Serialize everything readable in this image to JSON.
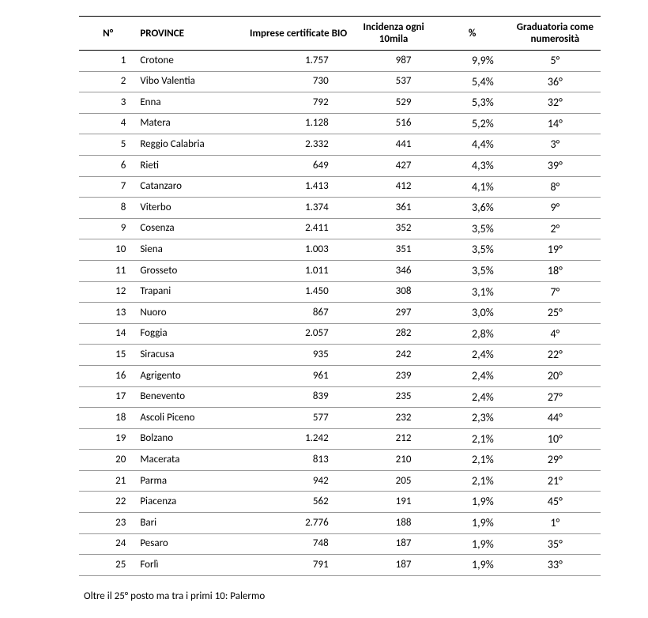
{
  "table": {
    "headers": {
      "num": "N°",
      "province": "PROVINCE",
      "imprese": "Imprese certificate BIO",
      "incidenza": "Incidenza ogni 10mila",
      "pct": "%",
      "graduatoria": "Graduatoria come numerosità"
    },
    "rows": [
      {
        "n": "1",
        "province": "Crotone",
        "imprese": "1.757",
        "incid": "987",
        "pct": "9,9%",
        "grad": "5°"
      },
      {
        "n": "2",
        "province": "Vibo Valentia",
        "imprese": "730",
        "incid": "537",
        "pct": "5,4%",
        "grad": "36°"
      },
      {
        "n": "3",
        "province": "Enna",
        "imprese": "792",
        "incid": "529",
        "pct": "5,3%",
        "grad": "32°"
      },
      {
        "n": "4",
        "province": "Matera",
        "imprese": "1.128",
        "incid": "516",
        "pct": "5,2%",
        "grad": "14°"
      },
      {
        "n": "5",
        "province": "Reggio Calabria",
        "imprese": "2.332",
        "incid": "441",
        "pct": "4,4%",
        "grad": "3°"
      },
      {
        "n": "6",
        "province": "Rieti",
        "imprese": "649",
        "incid": "427",
        "pct": "4,3%",
        "grad": "39°"
      },
      {
        "n": "7",
        "province": "Catanzaro",
        "imprese": "1.413",
        "incid": "412",
        "pct": "4,1%",
        "grad": "8°"
      },
      {
        "n": "8",
        "province": "Viterbo",
        "imprese": "1.374",
        "incid": "361",
        "pct": "3,6%",
        "grad": "9°"
      },
      {
        "n": "9",
        "province": "Cosenza",
        "imprese": "2.411",
        "incid": "352",
        "pct": "3,5%",
        "grad": "2°"
      },
      {
        "n": "10",
        "province": "Siena",
        "imprese": "1.003",
        "incid": "351",
        "pct": "3,5%",
        "grad": "19°"
      },
      {
        "n": "11",
        "province": "Grosseto",
        "imprese": "1.011",
        "incid": "346",
        "pct": "3,5%",
        "grad": "18°"
      },
      {
        "n": "12",
        "province": "Trapani",
        "imprese": "1.450",
        "incid": "308",
        "pct": "3,1%",
        "grad": "7°"
      },
      {
        "n": "13",
        "province": "Nuoro",
        "imprese": "867",
        "incid": "297",
        "pct": "3,0%",
        "grad": "25°"
      },
      {
        "n": "14",
        "province": "Foggia",
        "imprese": "2.057",
        "incid": "282",
        "pct": "2,8%",
        "grad": "4°"
      },
      {
        "n": "15",
        "province": "Siracusa",
        "imprese": "935",
        "incid": "242",
        "pct": "2,4%",
        "grad": "22°"
      },
      {
        "n": "16",
        "province": "Agrigento",
        "imprese": "961",
        "incid": "239",
        "pct": "2,4%",
        "grad": "20°"
      },
      {
        "n": "17",
        "province": "Benevento",
        "imprese": "839",
        "incid": "235",
        "pct": "2,4%",
        "grad": "27°"
      },
      {
        "n": "18",
        "province": "Ascoli Piceno",
        "imprese": "577",
        "incid": "232",
        "pct": "2,3%",
        "grad": "44°"
      },
      {
        "n": "19",
        "province": "Bolzano",
        "imprese": "1.242",
        "incid": "212",
        "pct": "2,1%",
        "grad": "10°"
      },
      {
        "n": "20",
        "province": "Macerata",
        "imprese": "813",
        "incid": "210",
        "pct": "2,1%",
        "grad": "29°"
      },
      {
        "n": "21",
        "province": "Parma",
        "imprese": "942",
        "incid": "205",
        "pct": "2,1%",
        "grad": "21°"
      },
      {
        "n": "22",
        "province": "Piacenza",
        "imprese": "562",
        "incid": "191",
        "pct": "1,9%",
        "grad": "45°"
      },
      {
        "n": "23",
        "province": "Bari",
        "imprese": "2.776",
        "incid": "188",
        "pct": "1,9%",
        "grad": "1°"
      },
      {
        "n": "24",
        "province": "Pesaro",
        "imprese": "748",
        "incid": "187",
        "pct": "1,9%",
        "grad": "35°"
      },
      {
        "n": "25",
        "province": "Forlì",
        "imprese": "791",
        "incid": "187",
        "pct": "1,9%",
        "grad": "33°"
      }
    ]
  },
  "footer_note": "Oltre il 25° posto ma tra i primi 10: Palermo",
  "styling": {
    "font_family": "Calibri",
    "header_font_size_pt": 13,
    "cell_font_size_pt": 13,
    "pct_font_size_pt": 14,
    "border_top_color": "#000000",
    "row_border_color": "#999999",
    "background_color": "#ffffff",
    "text_color": "#000000"
  }
}
